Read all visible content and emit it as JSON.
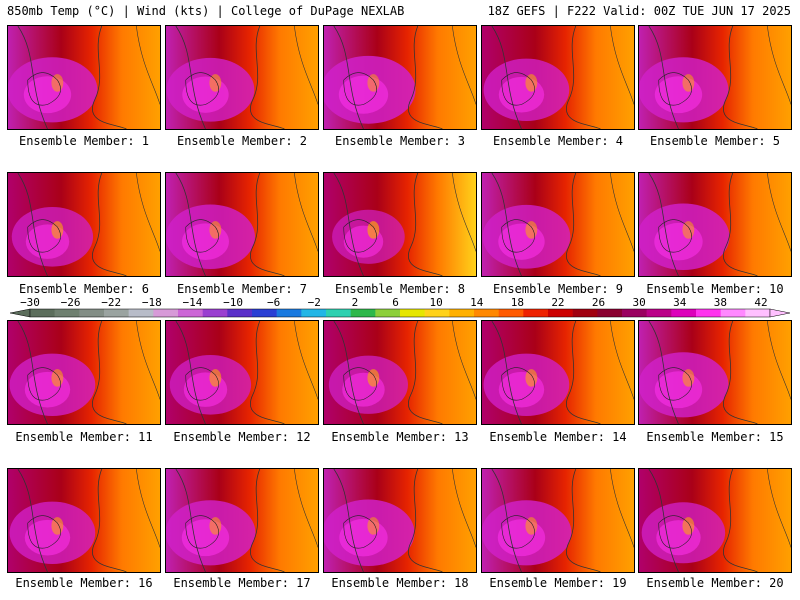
{
  "header": {
    "left": "850mb Temp (°C) | Wind (kts) | College of DuPage NEXLAB",
    "right": "18Z GEFS | F222 Valid: 00Z TUE JUN 17 2025"
  },
  "members": [
    {
      "label": "Ensemble Member: 1",
      "heat": 0.8
    },
    {
      "label": "Ensemble Member: 2",
      "heat": 0.75
    },
    {
      "label": "Ensemble Member: 3",
      "heat": 0.9
    },
    {
      "label": "Ensemble Member: 4",
      "heat": 0.7
    },
    {
      "label": "Ensemble Member: 5",
      "heat": 0.8
    },
    {
      "label": "Ensemble Member: 6",
      "heat": 0.6
    },
    {
      "label": "Ensemble Member: 7",
      "heat": 0.78
    },
    {
      "label": "Ensemble Member: 8",
      "heat": 0.4
    },
    {
      "label": "Ensemble Member: 9",
      "heat": 0.75
    },
    {
      "label": "Ensemble Member: 10",
      "heat": 0.85
    },
    {
      "label": "Ensemble Member: 11",
      "heat": 0.7
    },
    {
      "label": "Ensemble Member: 12",
      "heat": 0.6
    },
    {
      "label": "Ensemble Member: 13",
      "heat": 0.55
    },
    {
      "label": "Ensemble Member: 14",
      "heat": 0.7
    },
    {
      "label": "Ensemble Member: 15",
      "heat": 0.8
    },
    {
      "label": "Ensemble Member: 16",
      "heat": 0.7
    },
    {
      "label": "Ensemble Member: 17",
      "heat": 0.8
    },
    {
      "label": "Ensemble Member: 18",
      "heat": 0.85
    },
    {
      "label": "Ensemble Member: 19",
      "heat": 0.8
    },
    {
      "label": "Ensemble Member: 20",
      "heat": 0.65
    }
  ],
  "colorbar": {
    "labels": [
      "−30",
      "−26",
      "−22",
      "−18",
      "−14",
      "−10",
      "−6",
      "−2",
      "2",
      "6",
      "10",
      "14",
      "18",
      "22",
      "26",
      "30",
      "34",
      "38",
      "42"
    ],
    "colors": [
      "#5c6e5c",
      "#6f8070",
      "#838e86",
      "#9aa3a0",
      "#b8bcc8",
      "#d79ad8",
      "#cc66d6",
      "#9a3fd0",
      "#5a2fc9",
      "#2a3fd4",
      "#1a7ae0",
      "#22b6e6",
      "#2ed0b0",
      "#2eb84a",
      "#8ccf3a",
      "#e6e600",
      "#ffd21a",
      "#ffb000",
      "#ff8800",
      "#ff5a00",
      "#ee2200",
      "#cc0000",
      "#a00010",
      "#8a0030",
      "#9a0060",
      "#bb0088",
      "#dd00bb",
      "#ff33ee",
      "#ff88ff",
      "#ffc0ff"
    ]
  }
}
